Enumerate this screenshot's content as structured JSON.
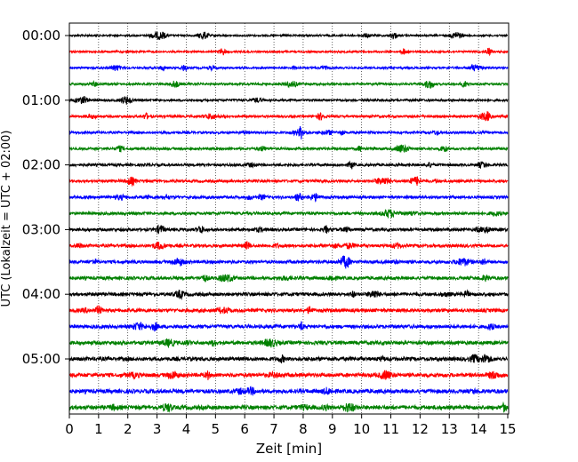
{
  "chart_data": {
    "type": "line",
    "title": "",
    "xlabel": "Zeit  [min]",
    "ylabel": "UTC (Lokalzeit = UTC + 02:00)",
    "xlim": [
      0,
      15
    ],
    "x_ticks": [
      "0",
      "1",
      "2",
      "3",
      "4",
      "5",
      "6",
      "7",
      "8",
      "9",
      "10",
      "11",
      "12",
      "13",
      "14",
      "15"
    ],
    "y_tick_labels": [
      "00:00",
      "01:00",
      "02:00",
      "03:00",
      "04:00",
      "05:00"
    ],
    "trace_interval_min": 15,
    "trace_count": 24,
    "trace_start_times": [
      "00:00",
      "00:15",
      "00:30",
      "00:45",
      "01:00",
      "01:15",
      "01:30",
      "01:45",
      "02:00",
      "02:15",
      "02:30",
      "02:45",
      "03:00",
      "03:15",
      "03:30",
      "03:45",
      "04:00",
      "04:15",
      "04:30",
      "04:45",
      "05:00",
      "05:15",
      "05:30",
      "05:45"
    ],
    "color_cycle": [
      "#000000",
      "#ff0000",
      "#0000ff",
      "#008000"
    ],
    "vertical_grid": "dotted",
    "legend": "none"
  }
}
